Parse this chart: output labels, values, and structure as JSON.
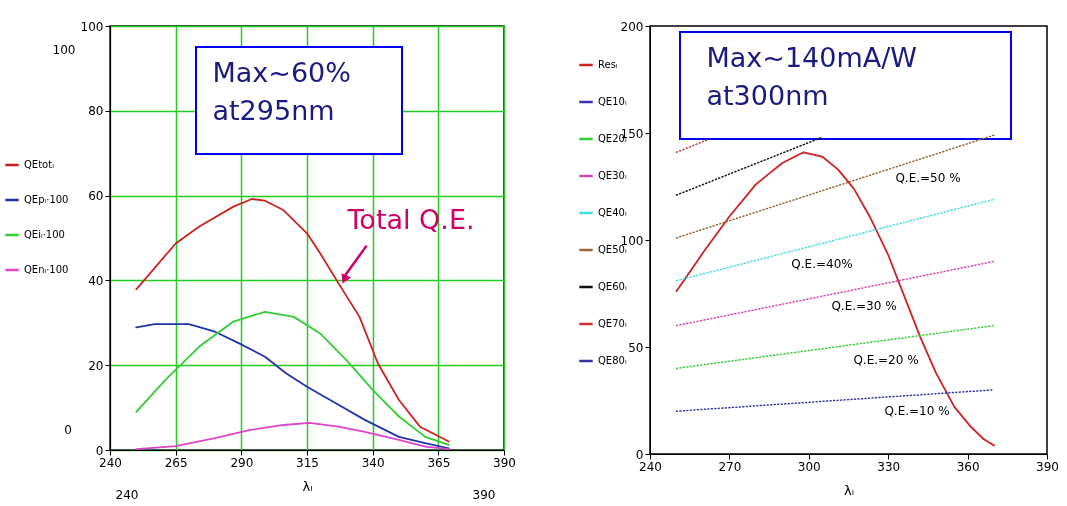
{
  "chart_data": [
    {
      "type": "line",
      "xlabel": "λₗ",
      "xlim": [
        240,
        390
      ],
      "xticks": [
        240,
        265,
        290,
        315,
        340,
        365,
        390
      ],
      "ylim": [
        0,
        100
      ],
      "yticks": [
        0,
        20,
        40,
        60,
        80,
        100
      ],
      "grid": true,
      "legend": "left",
      "series": [
        {
          "name": "QEtotₗ",
          "color": "#cc2222",
          "line_style": "solid",
          "x": [
            250,
            265,
            274,
            287,
            294,
            299,
            306,
            315,
            320,
            327,
            335,
            342,
            350,
            358,
            369
          ],
          "values": [
            37.9,
            48.7,
            52.7,
            57.4,
            59.2,
            58.8,
            56.6,
            51.1,
            46.4,
            39.3,
            31.4,
            20.4,
            11.8,
            5.5,
            2
          ]
        },
        {
          "name": "QEpₗ·100",
          "color": "#2233aa",
          "line_style": "solid",
          "x": [
            250,
            257,
            270,
            280,
            289,
            299,
            307,
            315,
            325,
            337,
            350,
            360,
            369
          ],
          "values": [
            28.9,
            29.7,
            29.7,
            27.9,
            25.2,
            22,
            18.1,
            14.9,
            11.4,
            7.1,
            3.1,
            1.6,
            0.4
          ]
        },
        {
          "name": "QEiₗ·100",
          "color": "#33cc33",
          "line_style": "solid",
          "x": [
            250,
            261,
            274,
            287,
            299,
            310,
            320,
            330,
            340,
            350,
            360,
            369
          ],
          "values": [
            9,
            16.5,
            24.4,
            30.3,
            32.6,
            31.4,
            27.5,
            21.2,
            14.2,
            7.9,
            3.1,
            1.2
          ]
        },
        {
          "name": "QEnₗ·100",
          "color": "#dd44cc",
          "line_style": "solid",
          "x": [
            250,
            265,
            280,
            293,
            306,
            316,
            327,
            337,
            350,
            360,
            369
          ],
          "values": [
            0.2,
            0.9,
            2.8,
            4.7,
            5.9,
            6.4,
            5.5,
            4.3,
            2.4,
            0.8,
            0.2
          ]
        }
      ],
      "annotations": [
        "Max~60% at295nm",
        {
          "text": "Total Q.E.",
          "x": 327,
          "y": 39
        },
        "100",
        "0",
        "240",
        "390"
      ]
    },
    {
      "type": "line",
      "xlabel": "λₗ",
      "xlim": [
        240,
        390
      ],
      "xticks": [
        240,
        270,
        300,
        330,
        360,
        390
      ],
      "ylim": [
        0,
        200
      ],
      "yticks": [
        0,
        50,
        100,
        150,
        200
      ],
      "legend": "left",
      "series": [
        {
          "name": "Resₗ",
          "color": "#cc2222",
          "line_style": "solid",
          "x": [
            250,
            260,
            270,
            280,
            285,
            290,
            298,
            305,
            311,
            317,
            323,
            330,
            336,
            342,
            348,
            355,
            361,
            366,
            370
          ],
          "values": [
            76,
            94,
            111,
            126,
            131,
            136,
            141,
            139,
            133,
            124,
            111,
            93,
            74,
            55,
            38,
            22,
            13,
            7,
            4
          ]
        },
        {
          "name": "QE10ₗ",
          "color": "#3333aa",
          "line_style": "dotted",
          "x": [
            250,
            370
          ],
          "values": [
            20,
            30
          ]
        },
        {
          "name": "QE20ₗ",
          "color": "#33cc33",
          "line_style": "dotted",
          "x": [
            250,
            370
          ],
          "values": [
            40,
            60
          ]
        },
        {
          "name": "QE30ₗ",
          "color": "#dd44aa",
          "line_style": "dotted",
          "x": [
            250,
            370
          ],
          "values": [
            60,
            90
          ]
        },
        {
          "name": "QE40ₗ",
          "color": "#44dddd",
          "line_style": "dotted",
          "x": [
            250,
            370
          ],
          "values": [
            81,
            119
          ]
        },
        {
          "name": "QE50ₗ",
          "color": "#996633",
          "line_style": "dotted",
          "x": [
            250,
            370
          ],
          "values": [
            101,
            149
          ]
        },
        {
          "name": "QE60ₗ",
          "color": "#111111",
          "line_style": "dotted",
          "x": [
            250,
            305
          ],
          "values": [
            121,
            148
          ]
        },
        {
          "name": "QE70ₗ",
          "color": "#cc3333",
          "line_style": "dotted",
          "x": [
            250,
            262
          ],
          "values": [
            141,
            147
          ]
        },
        {
          "name": "QE80ₗ",
          "color": "#333399",
          "line_style": "dotted",
          "values": [
            null,
            null
          ]
        }
      ],
      "annotations": [
        "Max~140mA/W at300nm",
        "Q.E.=50 %",
        "Q.E.=40%",
        "Q.E.=30 %",
        "Q.E.=20 %",
        "Q.E.=10 %"
      ]
    }
  ]
}
